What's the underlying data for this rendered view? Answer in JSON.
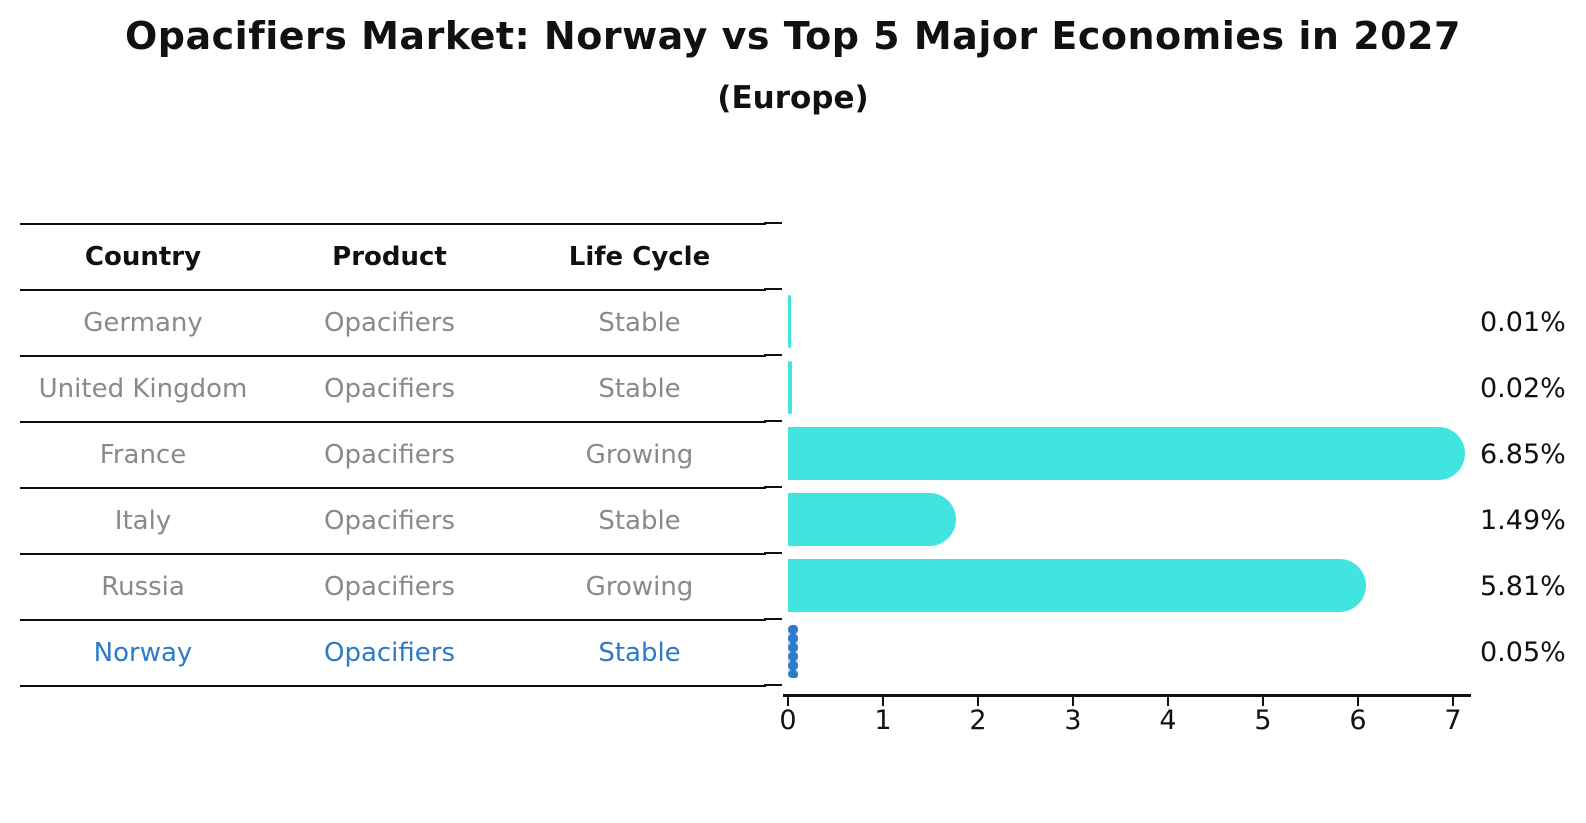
{
  "title": "Opacifiers Market: Norway vs Top 5 Major Economies in 2027",
  "subtitle": "(Europe)",
  "table": {
    "headers": [
      "Country",
      "Product",
      "Life Cycle"
    ],
    "rows": [
      {
        "country": "Germany",
        "product": "Opacifiers",
        "life_cycle": "Stable",
        "highlight": false
      },
      {
        "country": "United Kingdom",
        "product": "Opacifiers",
        "life_cycle": "Stable",
        "highlight": false
      },
      {
        "country": "France",
        "product": "Opacifiers",
        "life_cycle": "Growing",
        "highlight": false
      },
      {
        "country": "Italy",
        "product": "Opacifiers",
        "life_cycle": "Stable",
        "highlight": false
      },
      {
        "country": "Russia",
        "product": "Opacifiers",
        "life_cycle": "Growing",
        "highlight": false
      },
      {
        "country": "Norway",
        "product": "Opacifiers",
        "life_cycle": "Stable",
        "highlight": true
      }
    ]
  },
  "chart_data": {
    "type": "bar",
    "orientation": "horizontal",
    "title": "Opacifiers Market: Norway vs Top 5 Major Economies in 2027",
    "subtitle": "(Europe)",
    "categories": [
      "Germany",
      "United Kingdom",
      "France",
      "Italy",
      "Russia",
      "Norway"
    ],
    "values": [
      0.01,
      0.02,
      6.85,
      1.49,
      5.81,
      0.05
    ],
    "value_labels": [
      "0.01%",
      "0.02%",
      "6.85%",
      "1.49%",
      "5.81%",
      "0.05%"
    ],
    "highlight_index": 5,
    "x_ticks": [
      "0",
      "1",
      "2",
      "3",
      "4",
      "5",
      "6",
      "7"
    ],
    "xlim": [
      0,
      7.2
    ],
    "xlabel": "",
    "ylabel": "",
    "grid": false,
    "legend": false,
    "bar_color": "#40e5e0",
    "highlight_color": "#2b7bc9"
  },
  "colors": {
    "bar_cyan": "#40e5e0",
    "highlight_blue": "#2b7bc9",
    "text_gray": "#8a8a8a",
    "text_black": "#111111"
  }
}
